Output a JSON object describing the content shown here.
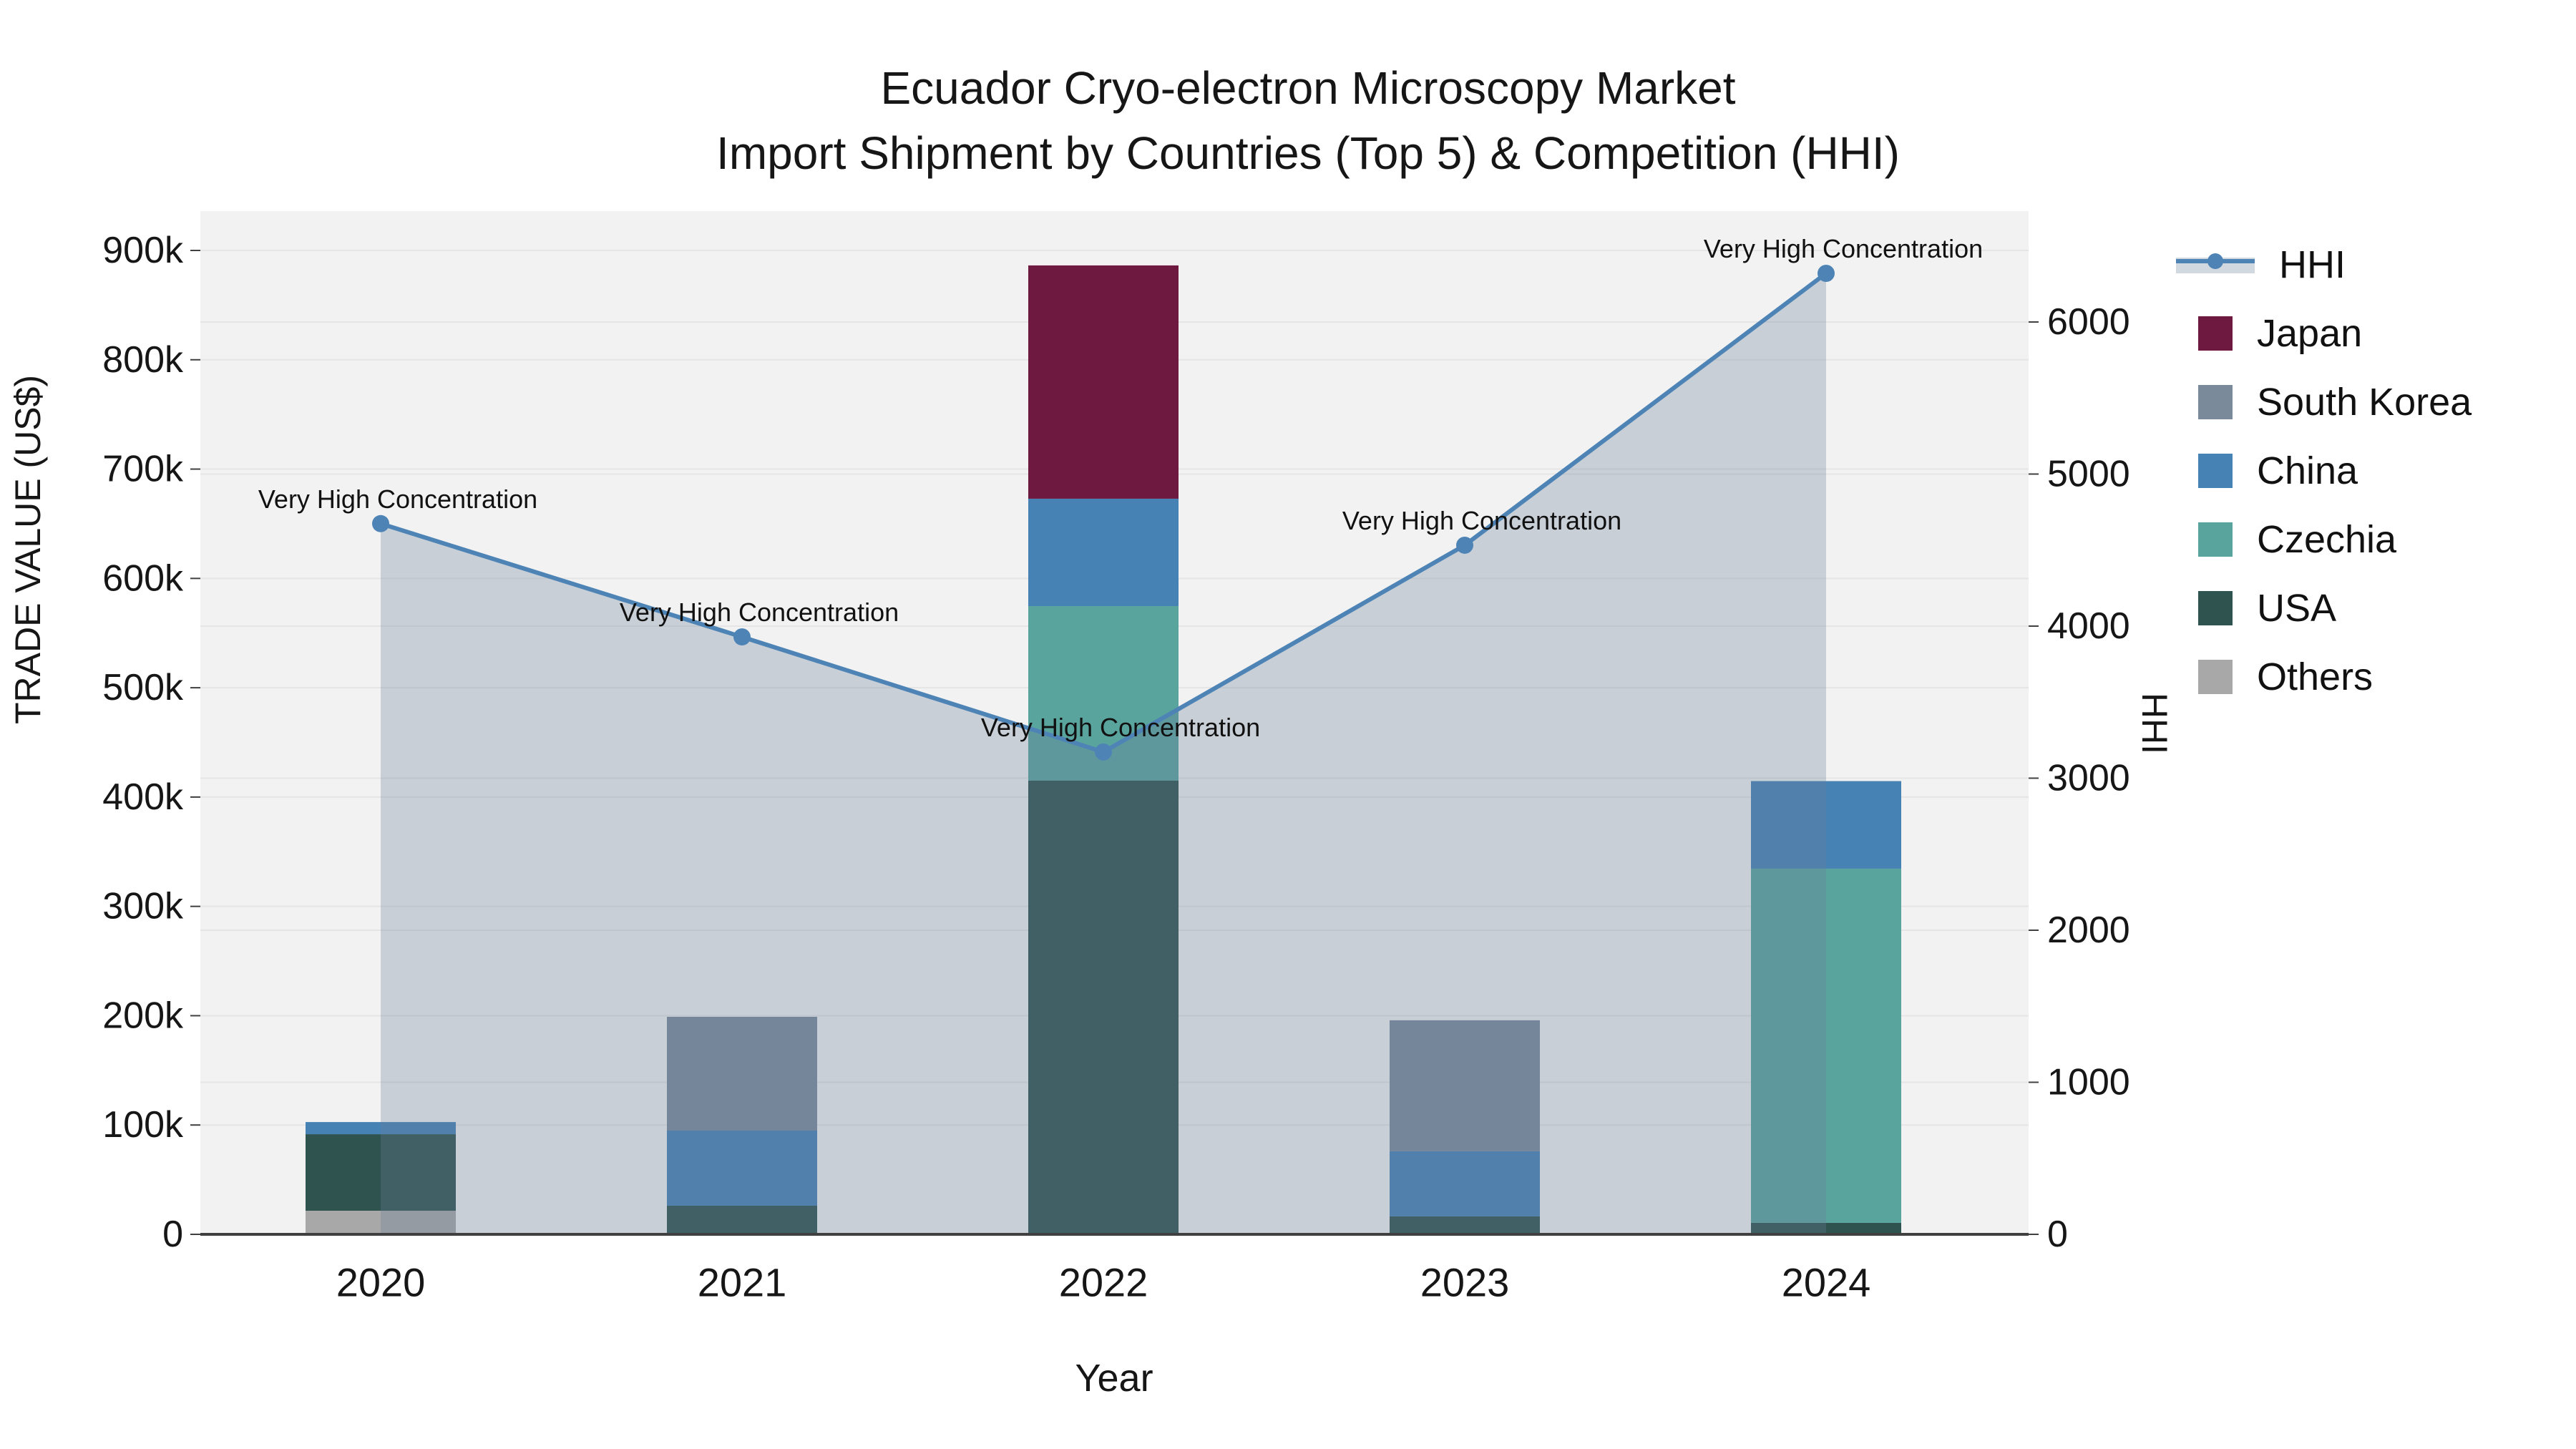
{
  "chart_data": {
    "type": "combo-stacked-bar-line",
    "title_line1": "Ecuador Cryo-electron Microscopy Market",
    "title_line2": "Import Shipment by Countries (Top 5) & Competition (HHI)",
    "xlabel": "Year",
    "ylabel_left": "TRADE VALUE (US$)",
    "ylabel_right": "HHI",
    "categories": [
      "2020",
      "2021",
      "2022",
      "2023",
      "2024"
    ],
    "values_unit": "thousand US$",
    "series": [
      {
        "name": "Japan",
        "color": "#6d1940",
        "values": [
          0,
          0,
          213.4,
          0,
          0
        ]
      },
      {
        "name": "South Korea",
        "color": "#7b8a9b",
        "values": [
          0,
          104.1,
          0,
          119.8,
          0
        ]
      },
      {
        "name": "China",
        "color": "#4682b4",
        "values": [
          11.1,
          68.7,
          98.2,
          59.6,
          80.1
        ]
      },
      {
        "name": "Czechia",
        "color": "#5aa49e",
        "values": [
          0,
          0,
          159.7,
          0,
          324.0
        ]
      },
      {
        "name": "USA",
        "color": "#2f534f",
        "values": [
          70.0,
          26.2,
          415.0,
          16.4,
          10.5
        ]
      },
      {
        "name": "Others",
        "color": "#a8a8a8",
        "values": [
          21.6,
          0,
          0,
          0,
          0
        ]
      }
    ],
    "stack_order_bottom_to_top": [
      "Others",
      "USA",
      "Czechia",
      "China",
      "South Korea",
      "Japan"
    ],
    "hhi": {
      "name": "HHI",
      "values": [
        4674,
        3929,
        3172,
        4532,
        6320
      ],
      "line_color": "#4e84b5",
      "fill_color": "rgba(105,125,152,0.30)",
      "annotations": [
        "Very High Concentration",
        "Very High Concentration",
        "Very High Concentration",
        "Very High Concentration",
        "Very High Concentration"
      ]
    },
    "left_axis": {
      "tick_labels": [
        "0",
        "100k",
        "200k",
        "300k",
        "400k",
        "500k",
        "600k",
        "700k",
        "800k",
        "900k"
      ],
      "tick_values_k": [
        0,
        100,
        200,
        300,
        400,
        500,
        600,
        700,
        800,
        900
      ],
      "range_k": [
        0,
        936
      ]
    },
    "right_axis": {
      "tick_labels": [
        "0",
        "1000",
        "2000",
        "3000",
        "4000",
        "5000",
        "6000"
      ],
      "tick_values": [
        0,
        1000,
        2000,
        3000,
        4000,
        5000,
        6000
      ],
      "range": [
        0,
        6720
      ]
    },
    "legend_entries": [
      "HHI",
      "Japan",
      "South Korea",
      "China",
      "Czechia",
      "USA",
      "Others"
    ],
    "grid": true,
    "legend_position": "right"
  },
  "colors": {
    "plot_bg": "#f2f2f2",
    "page_bg": "#ffffff",
    "gridline": "#e5e5e5",
    "axis_line": "#404040",
    "tick_text": "#161616",
    "annotation_text": "#111111"
  }
}
